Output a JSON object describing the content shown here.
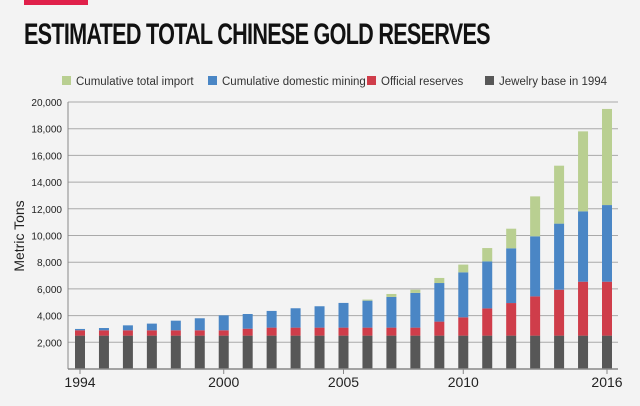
{
  "chart_data": {
    "type": "bar",
    "stacked": true,
    "title": "ESTIMATED TOTAL CHINESE GOLD RESERVES",
    "xlabel": "",
    "ylabel": "Metric Tons",
    "ylim": [
      0,
      20000
    ],
    "yticks": [
      "2,000",
      "4,000",
      "6,000",
      "8,000",
      "10,000",
      "12,000",
      "14,000",
      "16,000",
      "18,000",
      "20,000"
    ],
    "xticks": [
      "1994",
      "2000",
      "2005",
      "2010",
      "2016"
    ],
    "grid": true,
    "legend_position": "top",
    "categories": [
      1994,
      1995,
      1996,
      1997,
      1998,
      1999,
      2000,
      2001,
      2002,
      2003,
      2004,
      2005,
      2006,
      2007,
      2008,
      2009,
      2010,
      2011,
      2012,
      2013,
      2014,
      2015,
      2016
    ],
    "series": [
      {
        "name": "Jewelry base in 1994",
        "color": "#575757",
        "values": [
          2500,
          2500,
          2500,
          2500,
          2500,
          2500,
          2500,
          2500,
          2500,
          2500,
          2500,
          2500,
          2500,
          2500,
          2500,
          2500,
          2500,
          2500,
          2500,
          2500,
          2500,
          2500,
          2500
        ]
      },
      {
        "name": "Official reserves",
        "color": "#cf3d4a",
        "values": [
          400,
          400,
          400,
          400,
          400,
          400,
          400,
          520,
          600,
          600,
          600,
          600,
          600,
          600,
          600,
          1050,
          1370,
          2040,
          2440,
          2940,
          3440,
          4040,
          4040
        ]
      },
      {
        "name": "Cumulative domestic mining",
        "color": "#4a86c5",
        "values": [
          100,
          170,
          370,
          500,
          720,
          900,
          1120,
          1100,
          1250,
          1450,
          1600,
          1850,
          2020,
          2300,
          2600,
          2890,
          3370,
          3520,
          4100,
          4500,
          4950,
          5270,
          5740
        ]
      },
      {
        "name": "Cumulative total import",
        "color": "#b9cf91",
        "values": [
          0,
          0,
          0,
          0,
          0,
          0,
          0,
          0,
          0,
          0,
          0,
          0,
          80,
          220,
          240,
          380,
          580,
          1000,
          1470,
          2990,
          4340,
          5990,
          7200
        ]
      }
    ],
    "legend_order": [
      "Cumulative total import",
      "Cumulative domestic mining",
      "Official reserves",
      "Jewelry base in 1994"
    ]
  }
}
